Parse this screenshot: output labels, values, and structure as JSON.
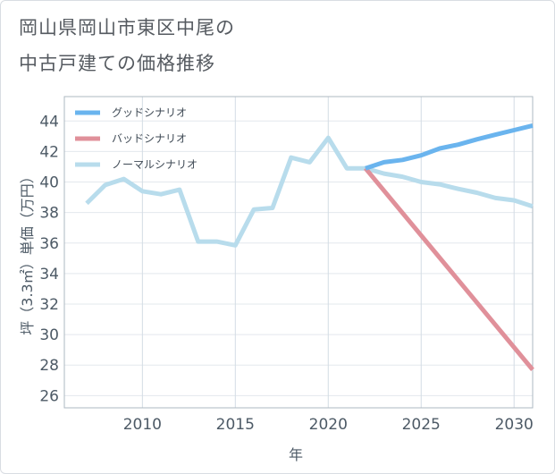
{
  "title_line1": "岡山県岡山市東区中尾の",
  "title_line2": "中古戸建ての価格推移",
  "chart_data": {
    "type": "line",
    "xlabel": "年",
    "ylabel": "坪（3.3㎡）単価（万円）",
    "xlim": [
      2005.8,
      2031
    ],
    "ylim": [
      25.2,
      45.6
    ],
    "xticks": [
      2010,
      2015,
      2020,
      2025,
      2030
    ],
    "yticks": [
      26,
      28,
      30,
      32,
      34,
      36,
      38,
      40,
      42,
      44
    ],
    "grid": true,
    "legend_position": "top-left",
    "series": [
      {
        "name": "グッドシナリオ",
        "color": "#6ab4ee",
        "x": [
          2022,
          2023,
          2024,
          2025,
          2026,
          2027,
          2028,
          2029,
          2030,
          2031
        ],
        "y": [
          40.9,
          41.3,
          41.45,
          41.75,
          42.2,
          42.45,
          42.8,
          43.1,
          43.4,
          43.7
        ]
      },
      {
        "name": "バッドシナリオ",
        "color": "#e0909a",
        "x": [
          2022,
          2031
        ],
        "y": [
          40.9,
          27.7
        ]
      },
      {
        "name": "ノーマルシナリオ",
        "color": "#b8dcec",
        "x": [
          2007,
          2008,
          2009,
          2010,
          2011,
          2012,
          2013,
          2014,
          2015,
          2016,
          2017,
          2018,
          2019,
          2020,
          2021,
          2022,
          2023,
          2024,
          2025,
          2026,
          2027,
          2028,
          2029,
          2030,
          2031
        ],
        "y": [
          38.6,
          39.8,
          40.2,
          39.4,
          39.2,
          39.5,
          36.1,
          36.1,
          35.85,
          38.2,
          38.3,
          41.6,
          41.3,
          42.9,
          40.9,
          40.9,
          40.55,
          40.35,
          40.0,
          39.85,
          39.55,
          39.3,
          38.95,
          38.8,
          38.4
        ]
      }
    ]
  }
}
